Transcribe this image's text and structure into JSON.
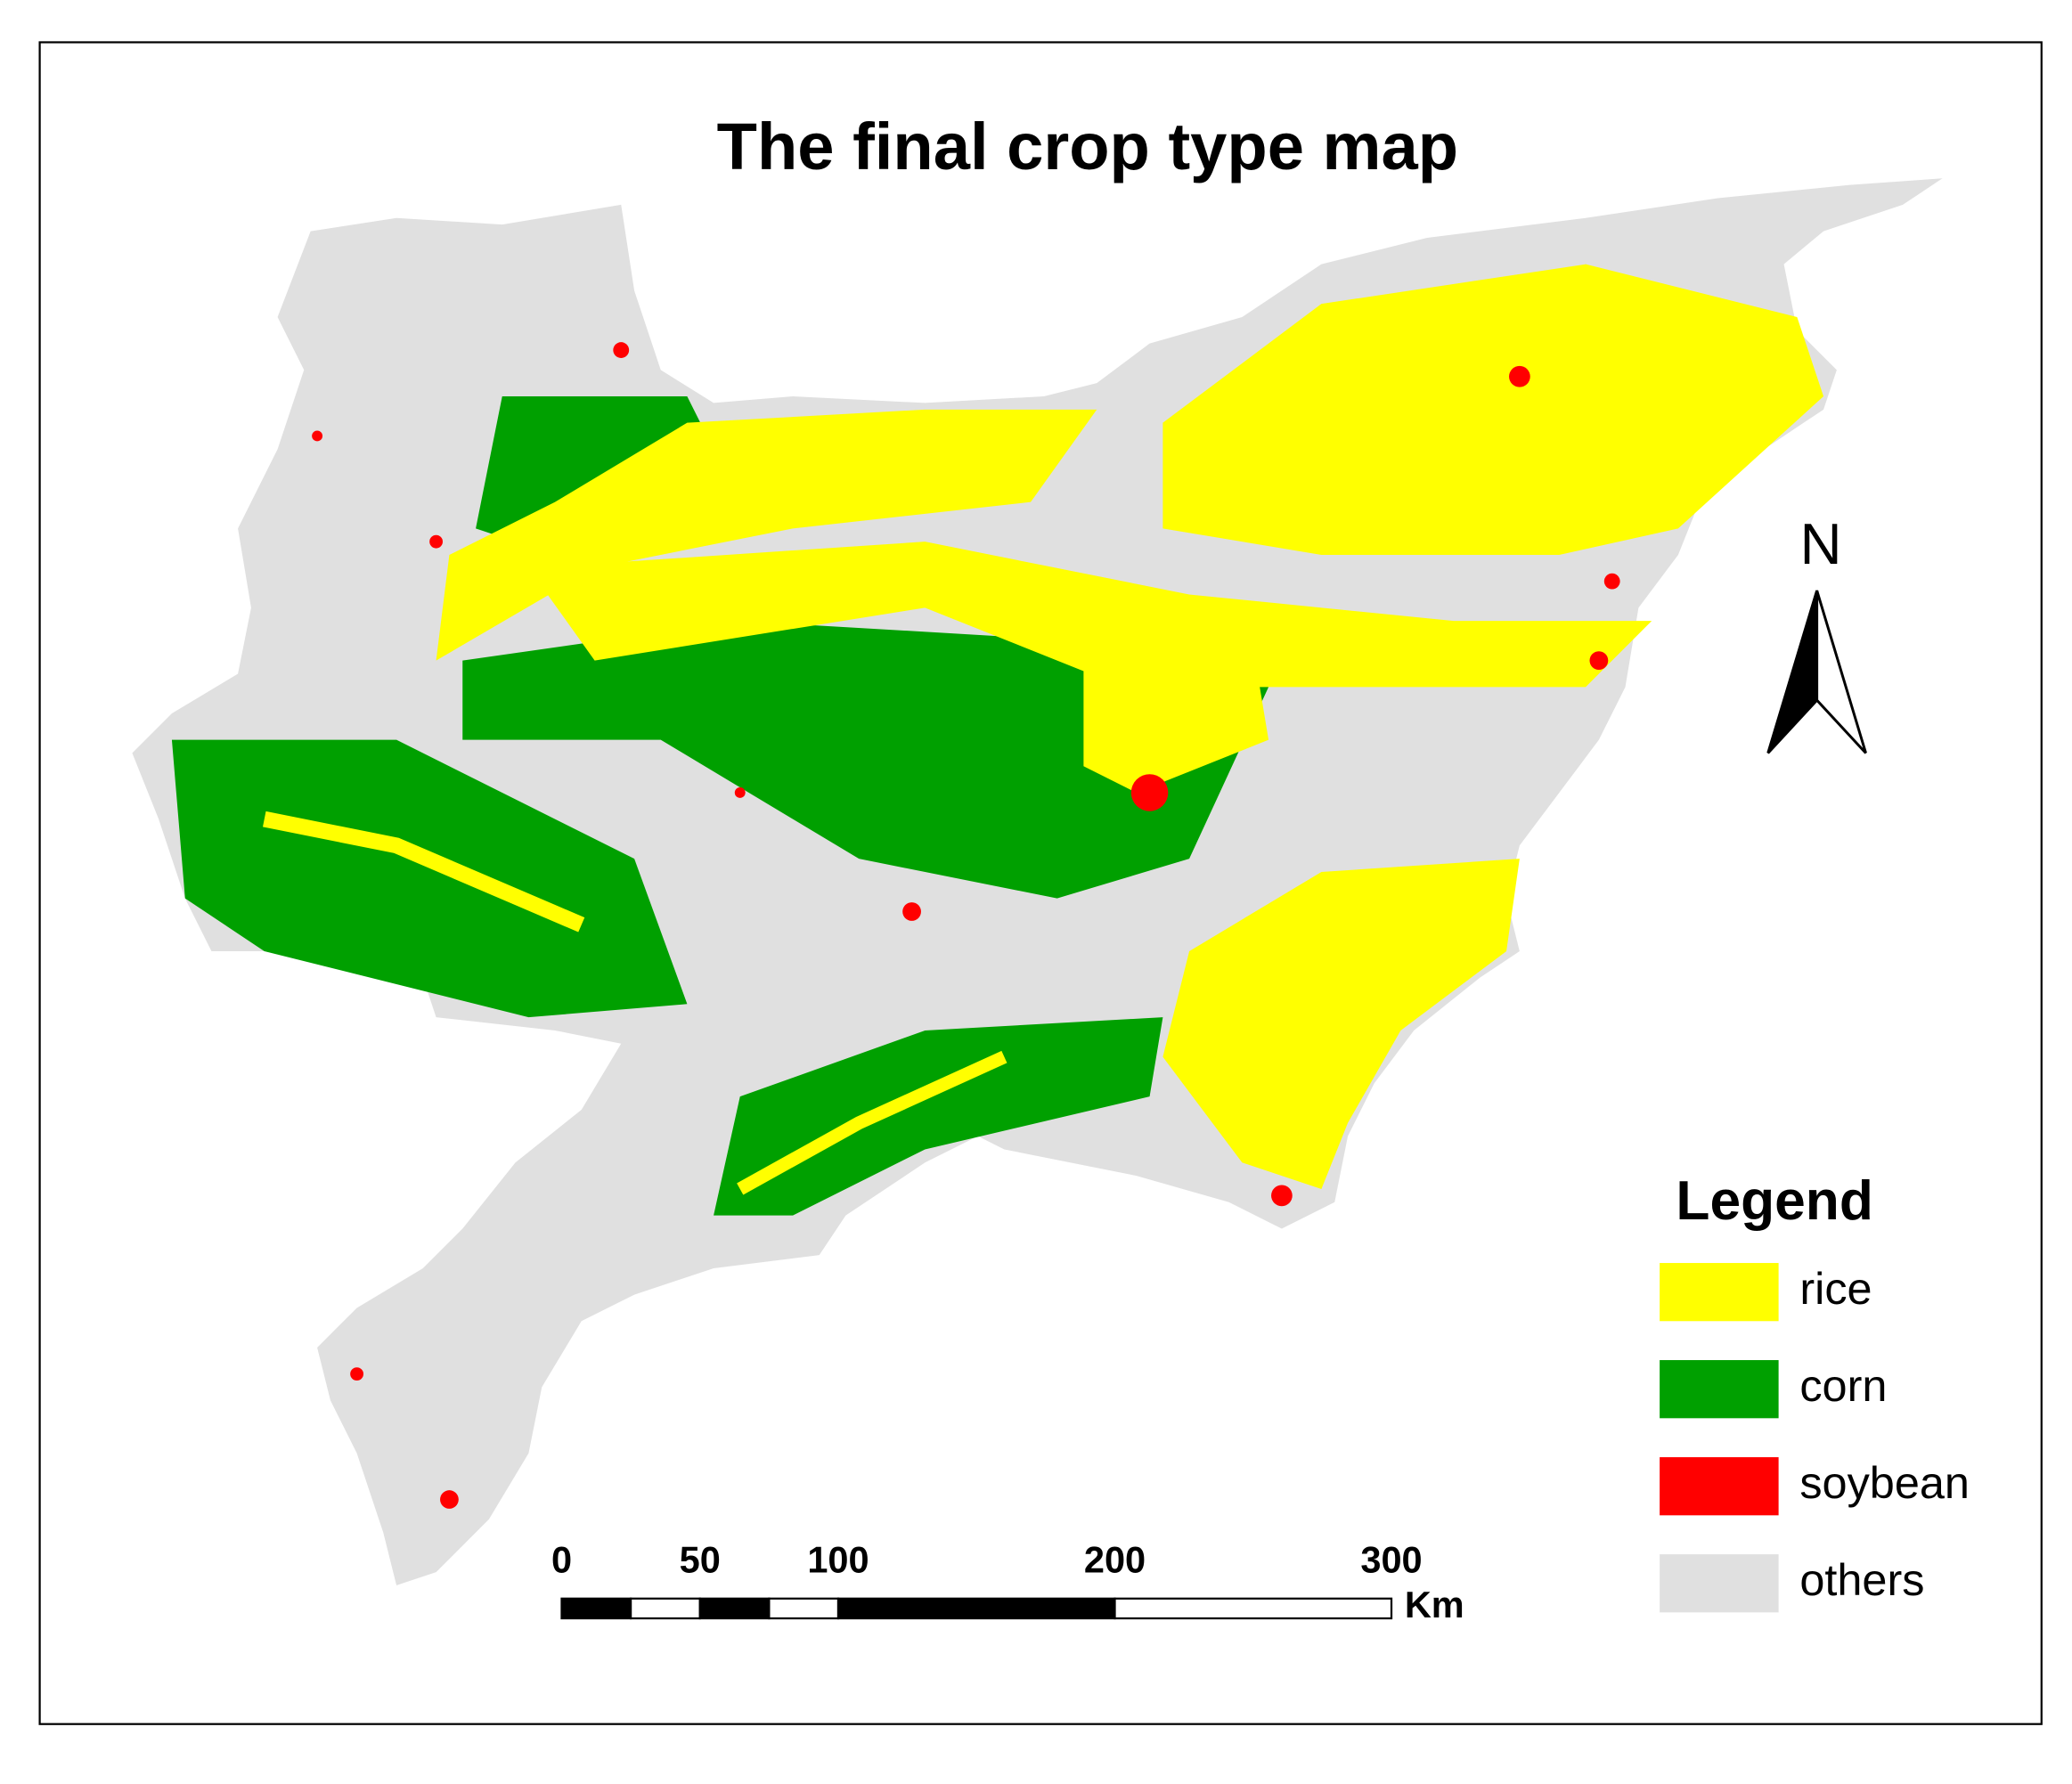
{
  "title": "The final crop type map",
  "north_arrow": {
    "label": "N"
  },
  "scale_bar": {
    "ticks": [
      0,
      50,
      100,
      200,
      300
    ],
    "unit": "Km"
  },
  "legend": {
    "title": "Legend",
    "items": [
      {
        "label": "rice",
        "color": "#ffff00"
      },
      {
        "label": "corn",
        "color": "#00a000"
      },
      {
        "label": "soybean",
        "color": "#ff0000"
      },
      {
        "label": "others",
        "color": "#e0e0e0"
      }
    ]
  }
}
